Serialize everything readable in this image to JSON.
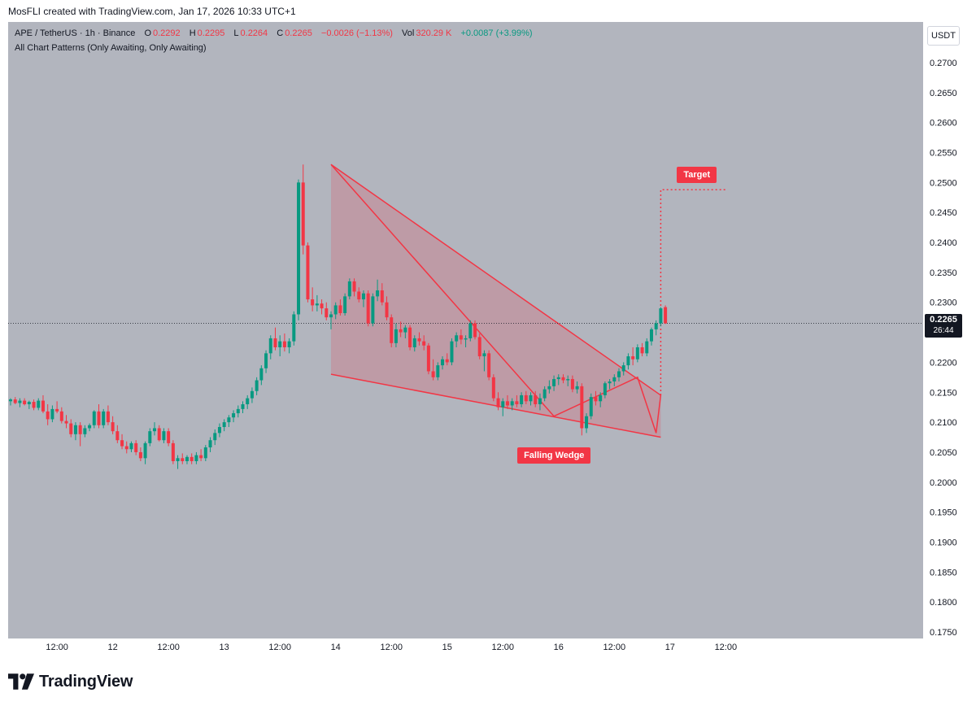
{
  "header": {
    "credit": "MosFLI created with TradingView.com, Jan 17, 2026 10:33 UTC+1"
  },
  "legend": {
    "symbol": "APE / TetherUS · 1h · Binance",
    "open_label": "O",
    "open": "0.2292",
    "high_label": "H",
    "high": "0.2295",
    "low_label": "L",
    "low": "0.2264",
    "close_label": "C",
    "close": "0.2265",
    "change": "−0.0026 (−1.13%)",
    "vol_label": "Vol",
    "vol": "320.29 K",
    "vol_change": "+0.0087 (+3.99%)",
    "indicator": "All Chart Patterns (Only Awaiting, Only Awaiting)"
  },
  "currency": "USDT",
  "price_tag": {
    "price": "0.2265",
    "countdown": "26:44"
  },
  "labels": {
    "pattern": "Falling Wedge",
    "target": "Target"
  },
  "brand": {
    "name": "TradingView"
  },
  "colors": {
    "background": "#b2b5be",
    "up": "#089981",
    "down": "#f23645",
    "pattern_line": "#f23645",
    "pattern_fill": "#f2364533"
  },
  "chart_data": {
    "type": "candlestick",
    "interval": "1h",
    "ylim": [
      0.175,
      0.27
    ],
    "y_ticks": [
      "0.2700",
      "0.2650",
      "0.2600",
      "0.2550",
      "0.2500",
      "0.2450",
      "0.2400",
      "0.2350",
      "0.2300",
      "0.2250",
      "0.2200",
      "0.2150",
      "0.2100",
      "0.2050",
      "0.2000",
      "0.1950",
      "0.1900",
      "0.1850",
      "0.1800",
      "0.1750"
    ],
    "x_ticks": [
      {
        "label": "12:00",
        "bar": 10
      },
      {
        "label": "12",
        "bar": 22
      },
      {
        "label": "12:00",
        "bar": 34
      },
      {
        "label": "13",
        "bar": 46
      },
      {
        "label": "12:00",
        "bar": 58
      },
      {
        "label": "14",
        "bar": 70
      },
      {
        "label": "12:00",
        "bar": 82
      },
      {
        "label": "15",
        "bar": 94
      },
      {
        "label": "12:00",
        "bar": 106
      },
      {
        "label": "16",
        "bar": 118
      },
      {
        "label": "12:00",
        "bar": 130
      },
      {
        "label": "17",
        "bar": 142
      },
      {
        "label": "12:00",
        "bar": 154
      }
    ],
    "candles": [
      [
        0.2135,
        0.214,
        0.2128,
        0.2138
      ],
      [
        0.2138,
        0.2142,
        0.213,
        0.2132
      ],
      [
        0.2132,
        0.214,
        0.2125,
        0.2136
      ],
      [
        0.2136,
        0.214,
        0.2128,
        0.213
      ],
      [
        0.213,
        0.2136,
        0.2122,
        0.2134
      ],
      [
        0.2134,
        0.2138,
        0.212,
        0.2124
      ],
      [
        0.2124,
        0.214,
        0.212,
        0.2136
      ],
      [
        0.2136,
        0.2145,
        0.2115,
        0.2118
      ],
      [
        0.2118,
        0.213,
        0.2095,
        0.2105
      ],
      [
        0.2105,
        0.2128,
        0.21,
        0.2122
      ],
      [
        0.2122,
        0.2135,
        0.2115,
        0.2118
      ],
      [
        0.2118,
        0.2125,
        0.2098,
        0.2102
      ],
      [
        0.2102,
        0.2112,
        0.209,
        0.2098
      ],
      [
        0.2098,
        0.2105,
        0.2075,
        0.208
      ],
      [
        0.208,
        0.21,
        0.207,
        0.2095
      ],
      [
        0.2095,
        0.21,
        0.206,
        0.208
      ],
      [
        0.208,
        0.2095,
        0.2075,
        0.209
      ],
      [
        0.209,
        0.2098,
        0.2085,
        0.2095
      ],
      [
        0.2095,
        0.212,
        0.209,
        0.2118
      ],
      [
        0.2118,
        0.213,
        0.209,
        0.2095
      ],
      [
        0.2095,
        0.2122,
        0.209,
        0.2118
      ],
      [
        0.2118,
        0.2128,
        0.2095,
        0.21
      ],
      [
        0.21,
        0.211,
        0.208,
        0.2085
      ],
      [
        0.2085,
        0.2095,
        0.2065,
        0.207
      ],
      [
        0.207,
        0.208,
        0.2055,
        0.206
      ],
      [
        0.206,
        0.2068,
        0.2048,
        0.2055
      ],
      [
        0.2055,
        0.2068,
        0.205,
        0.2065
      ],
      [
        0.2065,
        0.207,
        0.2045,
        0.205
      ],
      [
        0.205,
        0.2058,
        0.2035,
        0.204
      ],
      [
        0.204,
        0.2068,
        0.203,
        0.2065
      ],
      [
        0.2065,
        0.209,
        0.206,
        0.2085
      ],
      [
        0.2085,
        0.21,
        0.2078,
        0.209
      ],
      [
        0.209,
        0.2095,
        0.2068,
        0.207
      ],
      [
        0.207,
        0.209,
        0.2065,
        0.2085
      ],
      [
        0.2085,
        0.209,
        0.206,
        0.2065
      ],
      [
        0.2065,
        0.207,
        0.203,
        0.2035
      ],
      [
        0.2035,
        0.2045,
        0.2022,
        0.204
      ],
      [
        0.204,
        0.2048,
        0.203,
        0.2035
      ],
      [
        0.2035,
        0.2045,
        0.203,
        0.2042
      ],
      [
        0.2042,
        0.2048,
        0.203,
        0.2035
      ],
      [
        0.2035,
        0.205,
        0.203,
        0.2045
      ],
      [
        0.2045,
        0.2055,
        0.2035,
        0.204
      ],
      [
        0.204,
        0.2062,
        0.2035,
        0.2058
      ],
      [
        0.2058,
        0.2075,
        0.205,
        0.207
      ],
      [
        0.207,
        0.2088,
        0.2062,
        0.2082
      ],
      [
        0.2082,
        0.2098,
        0.2075,
        0.2092
      ],
      [
        0.2092,
        0.2105,
        0.2085,
        0.21
      ],
      [
        0.21,
        0.2112,
        0.2092,
        0.2108
      ],
      [
        0.2108,
        0.212,
        0.21,
        0.2115
      ],
      [
        0.2115,
        0.2128,
        0.2108,
        0.2122
      ],
      [
        0.2122,
        0.2135,
        0.2115,
        0.213
      ],
      [
        0.213,
        0.2145,
        0.2122,
        0.214
      ],
      [
        0.214,
        0.2158,
        0.2132,
        0.2152
      ],
      [
        0.2152,
        0.2175,
        0.2145,
        0.217
      ],
      [
        0.217,
        0.2195,
        0.2162,
        0.219
      ],
      [
        0.219,
        0.222,
        0.2182,
        0.2215
      ],
      [
        0.2215,
        0.2245,
        0.2205,
        0.224
      ],
      [
        0.224,
        0.2258,
        0.222,
        0.2225
      ],
      [
        0.2225,
        0.2245,
        0.221,
        0.2235
      ],
      [
        0.2235,
        0.2248,
        0.2218,
        0.2225
      ],
      [
        0.2225,
        0.224,
        0.2215,
        0.2235
      ],
      [
        0.2235,
        0.2285,
        0.2228,
        0.228
      ],
      [
        0.228,
        0.2505,
        0.227,
        0.25
      ],
      [
        0.25,
        0.253,
        0.238,
        0.2395
      ],
      [
        0.2395,
        0.24,
        0.23,
        0.2305
      ],
      [
        0.2305,
        0.2325,
        0.2285,
        0.2295
      ],
      [
        0.2295,
        0.2312,
        0.2285,
        0.2298
      ],
      [
        0.2298,
        0.2305,
        0.228,
        0.229
      ],
      [
        0.229,
        0.23,
        0.227,
        0.2275
      ],
      [
        0.2275,
        0.2285,
        0.2255,
        0.228
      ],
      [
        0.228,
        0.23,
        0.2272,
        0.2295
      ],
      [
        0.2295,
        0.2305,
        0.2278,
        0.2282
      ],
      [
        0.2282,
        0.2315,
        0.2278,
        0.231
      ],
      [
        0.231,
        0.234,
        0.2305,
        0.2335
      ],
      [
        0.2335,
        0.234,
        0.231,
        0.2318
      ],
      [
        0.2318,
        0.2325,
        0.23,
        0.2305
      ],
      [
        0.2305,
        0.232,
        0.2292,
        0.2315
      ],
      [
        0.2315,
        0.232,
        0.226,
        0.2265
      ],
      [
        0.2265,
        0.2315,
        0.226,
        0.231
      ],
      [
        0.231,
        0.2338,
        0.2302,
        0.232
      ],
      [
        0.232,
        0.2332,
        0.2295,
        0.23
      ],
      [
        0.23,
        0.231,
        0.227,
        0.2275
      ],
      [
        0.2275,
        0.228,
        0.2225,
        0.2232
      ],
      [
        0.2232,
        0.2265,
        0.2225,
        0.2255
      ],
      [
        0.2255,
        0.2268,
        0.2242,
        0.225
      ],
      [
        0.225,
        0.2262,
        0.224,
        0.2258
      ],
      [
        0.2258,
        0.2262,
        0.222,
        0.2225
      ],
      [
        0.2225,
        0.2245,
        0.2218,
        0.224
      ],
      [
        0.224,
        0.225,
        0.2228,
        0.2235
      ],
      [
        0.2235,
        0.2245,
        0.222,
        0.2228
      ],
      [
        0.2228,
        0.2232,
        0.218,
        0.2185
      ],
      [
        0.2185,
        0.2205,
        0.217,
        0.2175
      ],
      [
        0.2175,
        0.22,
        0.217,
        0.2195
      ],
      [
        0.2195,
        0.221,
        0.2188,
        0.2205
      ],
      [
        0.2205,
        0.2215,
        0.2195,
        0.22
      ],
      [
        0.22,
        0.224,
        0.2195,
        0.2235
      ],
      [
        0.2235,
        0.225,
        0.2225,
        0.2245
      ],
      [
        0.2245,
        0.2255,
        0.223,
        0.2238
      ],
      [
        0.2238,
        0.2245,
        0.2225,
        0.224
      ],
      [
        0.224,
        0.227,
        0.2235,
        0.2265
      ],
      [
        0.2265,
        0.227,
        0.2238,
        0.2242
      ],
      [
        0.2242,
        0.2248,
        0.2205,
        0.221
      ],
      [
        0.221,
        0.222,
        0.2185,
        0.2215
      ],
      [
        0.2215,
        0.222,
        0.217,
        0.2175
      ],
      [
        0.2175,
        0.218,
        0.2135,
        0.214
      ],
      [
        0.214,
        0.215,
        0.212,
        0.2125
      ],
      [
        0.2125,
        0.214,
        0.211,
        0.2135
      ],
      [
        0.2135,
        0.2145,
        0.2122,
        0.2128
      ],
      [
        0.2128,
        0.214,
        0.212,
        0.2135
      ],
      [
        0.2135,
        0.2145,
        0.2125,
        0.213
      ],
      [
        0.213,
        0.215,
        0.2125,
        0.2145
      ],
      [
        0.2145,
        0.2152,
        0.213,
        0.2135
      ],
      [
        0.2135,
        0.215,
        0.2128,
        0.2145
      ],
      [
        0.2145,
        0.2152,
        0.2125,
        0.213
      ],
      [
        0.213,
        0.2148,
        0.212,
        0.214
      ],
      [
        0.214,
        0.216,
        0.2135,
        0.2155
      ],
      [
        0.2155,
        0.217,
        0.2148,
        0.216
      ],
      [
        0.216,
        0.2178,
        0.2152,
        0.2172
      ],
      [
        0.2172,
        0.218,
        0.2162,
        0.2175
      ],
      [
        0.2175,
        0.218,
        0.2165,
        0.217
      ],
      [
        0.217,
        0.2178,
        0.216,
        0.2172
      ],
      [
        0.2172,
        0.2178,
        0.215,
        0.2155
      ],
      [
        0.2155,
        0.2168,
        0.2148,
        0.216
      ],
      [
        0.216,
        0.2165,
        0.2078,
        0.209
      ],
      [
        0.209,
        0.2115,
        0.2082,
        0.211
      ],
      [
        0.211,
        0.2148,
        0.2105,
        0.2142
      ],
      [
        0.2142,
        0.2152,
        0.2128,
        0.2135
      ],
      [
        0.2135,
        0.215,
        0.2125,
        0.2145
      ],
      [
        0.2145,
        0.2168,
        0.214,
        0.2165
      ],
      [
        0.2165,
        0.2172,
        0.2155,
        0.2168
      ],
      [
        0.2168,
        0.218,
        0.216,
        0.2175
      ],
      [
        0.2175,
        0.219,
        0.2168,
        0.2185
      ],
      [
        0.2185,
        0.22,
        0.2178,
        0.2195
      ],
      [
        0.2195,
        0.2215,
        0.2188,
        0.221
      ],
      [
        0.221,
        0.2225,
        0.2195,
        0.2205
      ],
      [
        0.2205,
        0.223,
        0.22,
        0.2225
      ],
      [
        0.2225,
        0.2232,
        0.221,
        0.2215
      ],
      [
        0.2215,
        0.224,
        0.221,
        0.2235
      ],
      [
        0.2235,
        0.2258,
        0.2228,
        0.2255
      ],
      [
        0.2255,
        0.227,
        0.2245,
        0.2265
      ],
      [
        0.2265,
        0.2292,
        0.226,
        0.229
      ],
      [
        0.2292,
        0.2295,
        0.2264,
        0.2265
      ]
    ],
    "pattern": {
      "name": "Falling Wedge",
      "upper_line": [
        [
          69,
          0.253
        ],
        [
          140,
          0.2145
        ]
      ],
      "lower_line": [
        [
          69,
          0.218
        ],
        [
          140,
          0.2075
        ]
      ],
      "zigzag": [
        [
          69,
          0.253
        ],
        [
          117,
          0.211
        ],
        [
          135,
          0.2175
        ],
        [
          139,
          0.2082
        ],
        [
          140,
          0.2145
        ]
      ],
      "target": {
        "price": 0.2488,
        "from_bar": 140,
        "to_bar": 154
      }
    }
  }
}
